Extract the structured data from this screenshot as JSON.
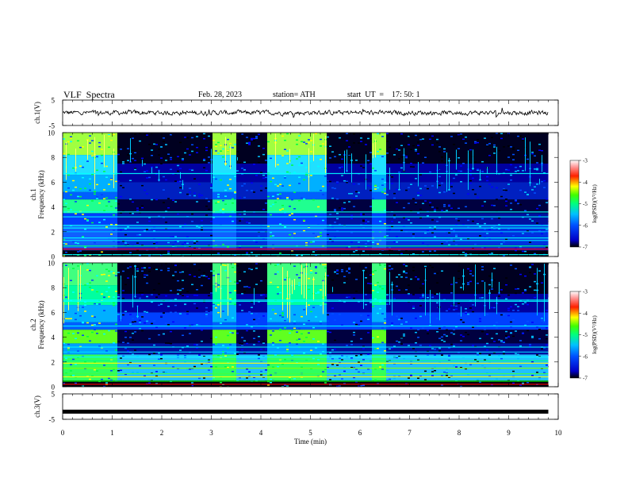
{
  "header": {
    "title": "VLF  Spectra",
    "date": "Feb. 28, 2023",
    "station": "station= ATH",
    "start": "start  UT  =    17: 50: 1"
  },
  "chart_data": [
    {
      "type": "line",
      "panel": "ch1-waveform",
      "ylabel": "ch.1(V)",
      "yticks": [
        "5",
        "-5"
      ],
      "ylim": [
        -5,
        5
      ],
      "xlim": [
        0,
        10
      ],
      "values_hint": "continuous noisy waveform around 0 V, amplitude about ±0.6 V, to 9.8 min"
    },
    {
      "type": "heatmap",
      "panel": "ch1-spectrogram",
      "ylabel": "ch.1\nFrequency  (kHz)",
      "yticks": [
        "0",
        "2",
        "4",
        "6",
        "8",
        "10"
      ],
      "ylim": [
        0,
        10
      ],
      "xlim": [
        0,
        10
      ],
      "data_end_min": 9.8,
      "bright_intervals_min": [
        [
          0,
          1.1
        ],
        [
          3.0,
          3.5
        ],
        [
          4.1,
          5.3
        ],
        [
          6.2,
          6.5
        ]
      ],
      "colorbar": {
        "label": "log(PSD)(V²/Hz)",
        "ticks": [
          "-3",
          "-4",
          "-5",
          "-6",
          "-7"
        ],
        "range": [
          -7,
          -3
        ],
        "colors": [
          "#000000",
          "#0000ff",
          "#00a0ff",
          "#00ffa0",
          "#00ff00",
          "#ffff00",
          "#ff0000",
          "#ffffff"
        ]
      }
    },
    {
      "type": "heatmap",
      "panel": "ch2-spectrogram",
      "ylabel": "ch.2\nFrequency  (kHz)",
      "yticks": [
        "0",
        "2",
        "4",
        "6",
        "8",
        "10"
      ],
      "ylim": [
        0,
        10
      ],
      "xlim": [
        0,
        10
      ],
      "data_end_min": 9.8,
      "bright_intervals_min": [
        [
          0,
          1.1
        ],
        [
          3.0,
          3.5
        ],
        [
          4.1,
          5.3
        ],
        [
          6.2,
          6.5
        ]
      ],
      "colorbar": {
        "label": "log(PSD)(V²/Hz)",
        "ticks": [
          "-3",
          "-4",
          "-5",
          "-6",
          "-7"
        ],
        "range": [
          -7,
          -3
        ],
        "colors": [
          "#000000",
          "#0000ff",
          "#00a0ff",
          "#00ffa0",
          "#00ff00",
          "#ffff00",
          "#ff0000",
          "#ffffff"
        ]
      }
    },
    {
      "type": "line",
      "panel": "ch3-waveform",
      "ylabel": "ch.3(V)",
      "yticks": [
        "5",
        "-5"
      ],
      "ylim": [
        -5,
        5
      ],
      "xlim": [
        0,
        10
      ],
      "values": {
        "x": [
          0,
          9.8
        ],
        "y": [
          -2,
          -2
        ]
      }
    }
  ],
  "xaxis": {
    "label": "Time  (min)",
    "ticks": [
      "0",
      "1",
      "2",
      "3",
      "4",
      "5",
      "6",
      "7",
      "8",
      "9",
      "10"
    ]
  }
}
